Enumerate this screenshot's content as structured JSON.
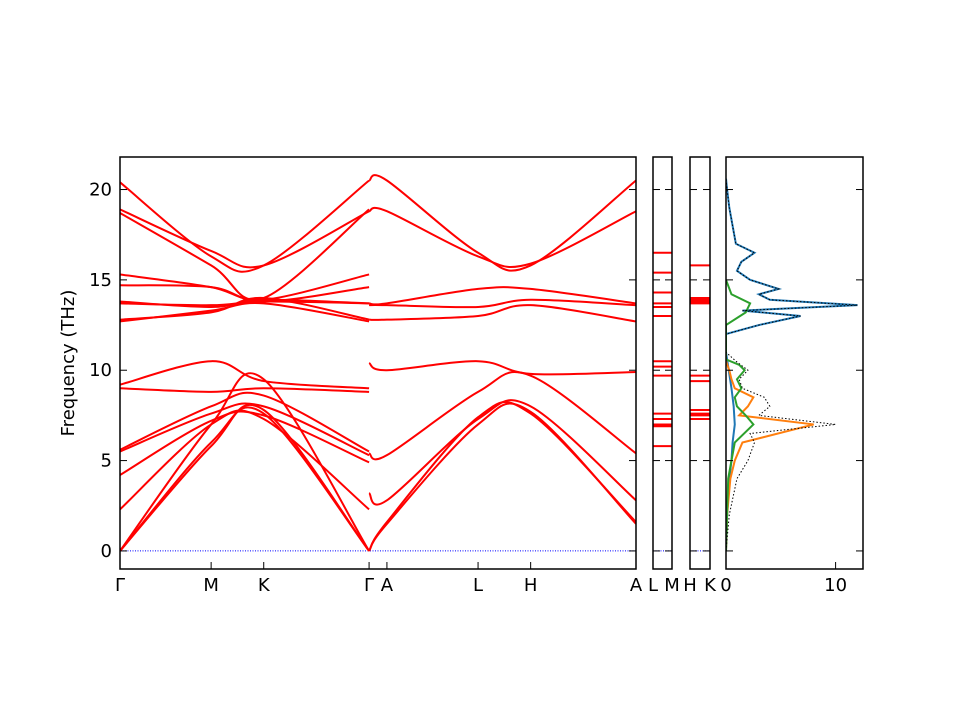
{
  "chart_data": {
    "type": "line",
    "ylabel": "Frequency (THz)",
    "ylim": [
      -1,
      21.8
    ],
    "yticks": [
      0,
      5,
      10,
      15,
      20
    ],
    "band_color": "#ff0000",
    "zero_line_color": "#0000ff",
    "panels": [
      {
        "kind": "bands",
        "xticks": [
          "Γ",
          "M",
          "K",
          "Γ",
          "A",
          "L",
          "H",
          "A"
        ],
        "xtick_positions": [
          0,
          0.577,
          0.91,
          1.577,
          1.69,
          2.267,
          2.6,
          3.267
        ],
        "branches": [
          {
            "x": [
              0,
              0.577,
              0.91,
              1.577
            ],
            "y": [
              20.4,
              16.3,
              15.8,
              20.5
            ]
          },
          {
            "x": [
              0,
              0.577,
              0.91,
              1.577
            ],
            "y": [
              18.9,
              16.6,
              15.8,
              18.8
            ]
          },
          {
            "x": [
              0,
              0.577,
              0.91,
              1.577
            ],
            "y": [
              18.7,
              15.8,
              14.0,
              18.9
            ]
          },
          {
            "x": [
              0,
              0.577,
              0.91,
              1.577
            ],
            "y": [
              15.3,
              14.6,
              13.9,
              15.3
            ]
          },
          {
            "x": [
              0,
              0.577,
              0.91,
              1.577
            ],
            "y": [
              14.7,
              14.6,
              13.8,
              14.6
            ]
          },
          {
            "x": [
              0,
              0.577,
              0.91,
              1.577
            ],
            "y": [
              13.8,
              13.5,
              13.9,
              13.7
            ]
          },
          {
            "x": [
              0,
              0.577,
              0.91,
              1.577
            ],
            "y": [
              13.7,
              13.6,
              13.8,
              13.7
            ]
          },
          {
            "x": [
              0,
              0.577,
              0.91,
              1.577
            ],
            "y": [
              12.8,
              13.2,
              14.0,
              12.8
            ]
          },
          {
            "x": [
              0,
              0.577,
              0.91,
              1.577
            ],
            "y": [
              12.7,
              13.3,
              13.7,
              12.7
            ]
          },
          {
            "x": [
              0,
              0.577,
              0.91,
              1.577
            ],
            "y": [
              9.2,
              10.5,
              9.4,
              9.0
            ]
          },
          {
            "x": [
              0,
              0.577,
              0.91,
              1.577
            ],
            "y": [
              9.0,
              8.8,
              9.0,
              8.8
            ]
          },
          {
            "x": [
              0,
              0.577,
              0.91,
              1.577
            ],
            "y": [
              5.6,
              8.0,
              8.6,
              5.5
            ]
          },
          {
            "x": [
              0,
              0.577,
              0.91,
              1.577
            ],
            "y": [
              5.5,
              7.6,
              8.0,
              5.3
            ]
          },
          {
            "x": [
              0,
              0.577,
              0.91,
              1.577
            ],
            "y": [
              4.2,
              7.2,
              7.5,
              4.9
            ]
          },
          {
            "x": [
              0,
              0.577,
              0.91,
              1.577
            ],
            "y": [
              2.3,
              7.0,
              7.3,
              2.3
            ]
          },
          {
            "x": [
              0,
              0.577,
              0.91,
              1.577
            ],
            "y": [
              0,
              7.0,
              9.5,
              0
            ]
          },
          {
            "x": [
              0,
              0.577,
              0.91,
              1.577
            ],
            "y": [
              0,
              5.8,
              7.8,
              0
            ]
          },
          {
            "x": [
              0,
              0.577,
              0.91,
              1.577
            ],
            "y": [
              0,
              6.0,
              7.6,
              0
            ]
          },
          {
            "x": [
              1.577,
              1.69,
              2.267,
              2.6,
              3.267
            ],
            "y": [
              20.5,
              20.5,
              16.5,
              15.8,
              20.5
            ]
          },
          {
            "x": [
              1.577,
              1.69,
              2.267,
              2.6,
              3.267
            ],
            "y": [
              18.8,
              18.8,
              16.3,
              15.9,
              18.8
            ]
          },
          {
            "x": [
              1.577,
              1.69,
              2.267,
              2.6,
              3.267
            ],
            "y": [
              13.7,
              13.7,
              14.5,
              14.5,
              13.7
            ]
          },
          {
            "x": [
              1.577,
              1.69,
              2.267,
              2.6,
              3.267
            ],
            "y": [
              13.6,
              13.6,
              13.5,
              13.9,
              13.6
            ]
          },
          {
            "x": [
              1.577,
              1.69,
              2.267,
              2.6,
              3.267
            ],
            "y": [
              12.8,
              12.8,
              13.0,
              13.6,
              12.7
            ]
          },
          {
            "x": [
              1.577,
              1.69,
              2.267,
              2.6,
              3.267
            ],
            "y": [
              10.4,
              10.0,
              10.5,
              9.8,
              9.9
            ]
          },
          {
            "x": [
              1.577,
              1.69,
              2.267,
              2.6,
              3.267
            ],
            "y": [
              5.4,
              5.3,
              8.8,
              9.7,
              5.4
            ]
          },
          {
            "x": [
              1.577,
              1.69,
              2.267,
              2.6,
              3.267
            ],
            "y": [
              3.2,
              2.8,
              7.3,
              8.0,
              2.8
            ]
          },
          {
            "x": [
              1.577,
              1.69,
              2.267,
              2.6,
              3.267
            ],
            "y": [
              0,
              1.6,
              7.4,
              7.6,
              1.6
            ]
          },
          {
            "x": [
              1.577,
              1.69,
              2.267,
              2.6,
              3.267
            ],
            "y": [
              0,
              1.5,
              7.0,
              7.7,
              1.5
            ]
          }
        ]
      },
      {
        "kind": "bands",
        "xticks": [
          "L",
          "M"
        ],
        "levels": [
          16.5,
          15.4,
          14.3,
          13.7,
          13.5,
          13.0,
          10.5,
          10.2,
          9.7,
          7.6,
          7.3,
          7.0,
          6.9,
          5.8,
          0
        ]
      },
      {
        "kind": "bands",
        "xticks": [
          "H",
          "K"
        ],
        "levels": [
          15.8,
          14.0,
          13.9,
          13.8,
          13.7,
          9.7,
          9.4,
          7.8,
          7.6,
          7.5,
          7.3,
          0
        ]
      },
      {
        "kind": "dos",
        "xticks": [
          "0",
          "10"
        ],
        "xlim": [
          0,
          12.5
        ],
        "series_colors": [
          "#1f77b4",
          "#ff7f0e",
          "#2ca02c",
          "#000000"
        ],
        "series": [
          {
            "f": [
              0,
              2,
              4,
              5,
              6,
              7,
              8,
              9,
              11,
              12,
              12.5,
              13,
              13.3,
              13.6,
              13.9,
              14.2,
              14.5,
              15,
              15.5,
              16,
              16.5,
              17,
              18,
              19,
              20,
              20.6
            ],
            "v": [
              0,
              0.1,
              0.3,
              0.5,
              0.6,
              0.8,
              0.7,
              0.5,
              0,
              0,
              3.0,
              6.8,
              1.5,
              12.0,
              4.0,
              3.0,
              4.8,
              2.2,
              1.0,
              1.4,
              2.6,
              0.9,
              0.6,
              0.3,
              0.1,
              0
            ]
          },
          {
            "f": [
              0,
              2,
              4,
              5,
              6,
              7,
              7.5,
              8,
              8.5,
              9,
              9.5,
              10,
              10.5
            ],
            "v": [
              0,
              0.1,
              0.4,
              0.8,
              1.5,
              8.0,
              1.2,
              2.0,
              2.5,
              0.8,
              0.5,
              0.3,
              0
            ]
          },
          {
            "f": [
              0,
              4,
              6,
              7,
              7.5,
              8,
              8.5,
              9,
              9.5,
              10,
              10.3,
              10.6,
              12.5,
              13.2,
              13.7,
              14.2,
              15
            ],
            "v": [
              0,
              0.2,
              0.8,
              2.5,
              1.8,
              1.0,
              0.8,
              1.4,
              1.0,
              1.7,
              1.2,
              0,
              0,
              1.8,
              2.2,
              0.5,
              0
            ]
          },
          {
            "f": [
              0,
              2,
              4,
              5,
              6,
              6.5,
              7,
              7.5,
              8,
              8.5,
              9,
              9.5,
              10,
              10.5,
              11,
              12,
              12.5,
              13,
              13.3,
              13.6,
              13.9,
              14.2,
              14.5,
              15,
              15.5,
              16,
              16.5,
              17,
              18,
              19,
              20,
              20.6
            ],
            "v": [
              0,
              0.3,
              1.0,
              2.0,
              2.6,
              2.2,
              10.0,
              3.0,
              4.0,
              3.5,
              1.5,
              1.2,
              2.0,
              0.9,
              0,
              0,
              3.0,
              6.8,
              1.5,
              12.0,
              4.0,
              3.0,
              4.8,
              2.2,
              1.0,
              1.4,
              2.6,
              0.9,
              0.6,
              0.3,
              0.1,
              0
            ]
          }
        ]
      }
    ]
  }
}
